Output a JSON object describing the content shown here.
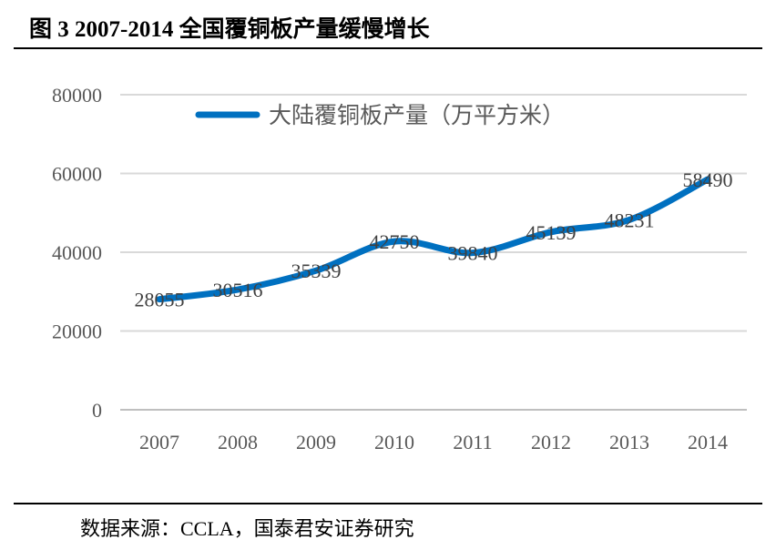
{
  "title": "图 3 2007-2014 全国覆铜板产量缓慢增长",
  "source": "数据来源：CCLA，国泰君安证券研究",
  "chart_data": {
    "type": "line",
    "categories": [
      "2007",
      "2008",
      "2009",
      "2010",
      "2011",
      "2012",
      "2013",
      "2014"
    ],
    "series": [
      {
        "name": "大陆覆铜板产量（万平方米）",
        "values": [
          28055,
          30516,
          35339,
          42750,
          39840,
          45139,
          48231,
          58490
        ],
        "color": "#0070C0"
      }
    ],
    "ylim": [
      0,
      80000
    ],
    "yticks": [
      0,
      20000,
      40000,
      60000,
      80000
    ],
    "grid": true,
    "legend": "top-left",
    "data_labels": true
  }
}
